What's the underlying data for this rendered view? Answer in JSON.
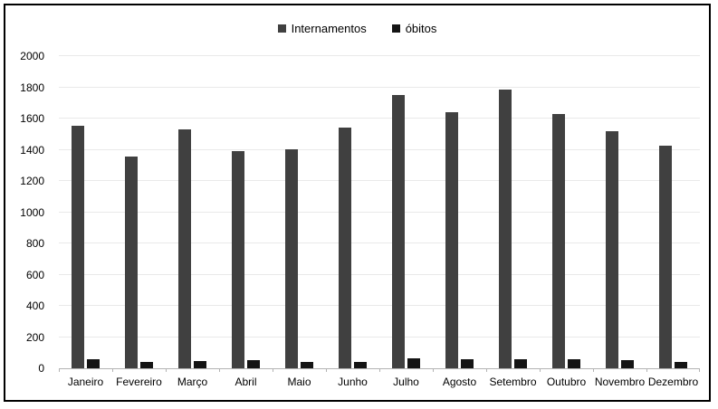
{
  "chart_data": {
    "type": "bar",
    "title": "",
    "xlabel": "",
    "ylabel": "",
    "categories": [
      "Janeiro",
      "Fevereiro",
      "Março",
      "Abril",
      "Maio",
      "Junho",
      "Julho",
      "Agosto",
      "Setembro",
      "Outubro",
      "Novembro",
      "Dezembro"
    ],
    "series": [
      {
        "name": "Internamentos",
        "color": "#404040",
        "values": [
          1555,
          1355,
          1530,
          1390,
          1405,
          1545,
          1750,
          1640,
          1785,
          1630,
          1520,
          1425
        ]
      },
      {
        "name": "óbitos",
        "color": "#141414",
        "values": [
          60,
          40,
          45,
          50,
          40,
          40,
          65,
          60,
          60,
          60,
          50,
          40
        ]
      }
    ],
    "ylim": [
      0,
      2000
    ],
    "yticks": [
      0,
      200,
      400,
      600,
      800,
      1000,
      1200,
      1400,
      1600,
      1800,
      2000
    ],
    "grid": true,
    "legend_position": "top center"
  },
  "colors": {
    "background": "#ffffff",
    "frame_border": "#000000",
    "gridline": "#e9e9e9",
    "axis_line": "#b3b3b3",
    "text": "#000000"
  }
}
